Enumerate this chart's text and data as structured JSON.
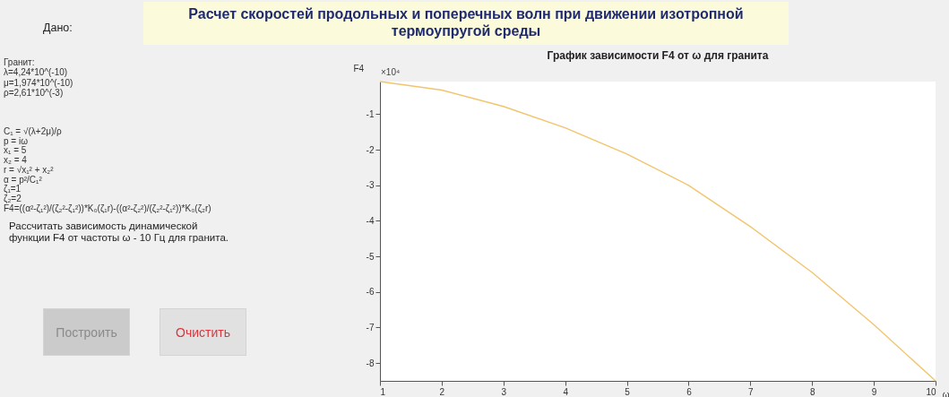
{
  "chart_data": {
    "type": "line",
    "title": "График зависимости F4 от ω для гранита",
    "xlabel": "ω",
    "ylabel": "F4",
    "x": [
      1,
      2,
      3,
      4,
      5,
      6,
      7,
      8,
      9,
      10
    ],
    "series": [
      {
        "color": "#f2c46d",
        "values": [
          -0.08,
          -0.32,
          -0.78,
          -1.38,
          -2.12,
          -3.0,
          -4.16,
          -5.45,
          -6.92,
          -8.5
        ]
      }
    ],
    "xlim": [
      1,
      10
    ],
    "ylim": [
      -8.5,
      -0.08
    ],
    "xticks": [
      1,
      2,
      3,
      4,
      5,
      6,
      7,
      8,
      9,
      10
    ],
    "yticks": [
      -1,
      -2,
      -3,
      -4,
      -5,
      -6,
      -7,
      -8
    ],
    "annotations": [
      "Расчет скоростей продольных и поперечных волн при движении изотропной термоупругой среды",
      "Дано:",
      "Гранит:",
      "λ=4,24*10^(-10)",
      "μ=1,974*10^(-10)",
      "ρ=2,61*10^(-3)",
      "C₁ = √(λ+2μ)/ρ",
      "p = iω",
      "x₁ = 5",
      "x₂ = 4",
      "r = √x₁² + x₂²",
      "α = p²/C₁²",
      "ζ₁=1",
      "ζ₂=2",
      "F4=((α²-ζ₁²)/(ζ₂²-ζ₁²))*K₀(ζ₁r)-((α²-ζ₂²)/(ζ₂²-ζ₁²))*K₀(ζ₂r)",
      "Рассчитать зависимость динамической функции F4 от частоты ω - 10 Гц для гранита.",
      "Построить",
      "Очистить",
      "×10⁴"
    ]
  }
}
